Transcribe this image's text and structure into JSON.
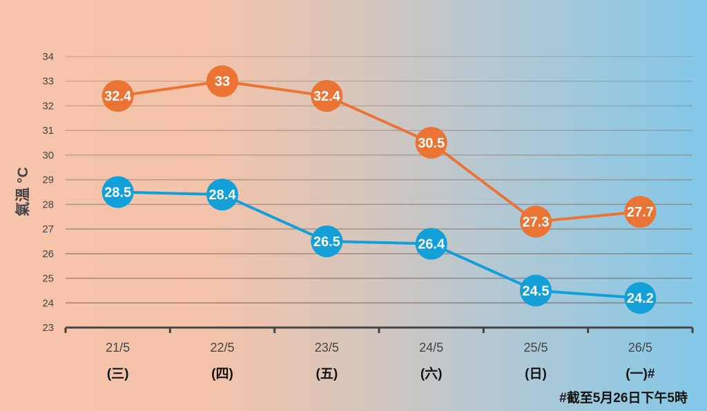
{
  "chart_data": {
    "type": "line",
    "ylabel": "氣溫 °C",
    "ylim": [
      23,
      34
    ],
    "yticks": [
      23,
      24,
      25,
      26,
      27,
      28,
      29,
      30,
      31,
      32,
      33,
      34
    ],
    "categories": [
      "21/5",
      "22/5",
      "23/5",
      "24/5",
      "25/5",
      "26/5"
    ],
    "weekdays": [
      "(三)",
      "(四)",
      "(五)",
      "(六)",
      "(日)",
      "(一)#"
    ],
    "grid": true,
    "series": [
      {
        "color": "#eb7434",
        "values": [
          32.4,
          33,
          32.4,
          30.5,
          27.3,
          27.7
        ]
      },
      {
        "color": "#139fd8",
        "values": [
          28.5,
          28.4,
          26.5,
          26.4,
          24.5,
          24.2
        ]
      }
    ],
    "footnote": "#截至5月26日下午5時"
  }
}
